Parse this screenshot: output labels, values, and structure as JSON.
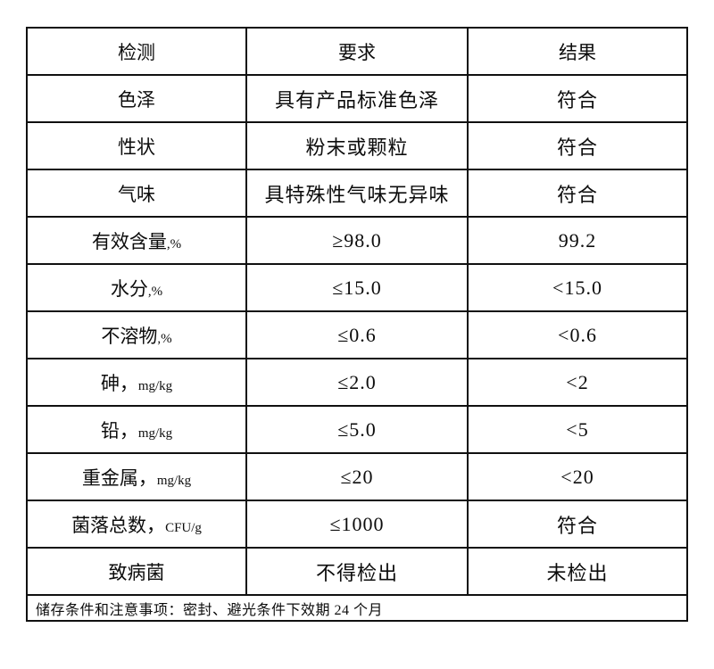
{
  "document": {
    "background_color": "#ffffff",
    "border_color": "#101010",
    "text_color": "#0c0c0c"
  },
  "table": {
    "header": {
      "test": "检测",
      "requirement": "要求",
      "result": "结果"
    },
    "rows": [
      {
        "test_main": "色泽",
        "test_suffix": "",
        "requirement": "具有产品标准色泽",
        "result": "符合"
      },
      {
        "test_main": "性状",
        "test_suffix": "",
        "requirement": "粉末或颗粒",
        "result": "符合"
      },
      {
        "test_main": "气味",
        "test_suffix": "",
        "requirement": "具特殊性气味无异味",
        "result": "符合"
      },
      {
        "test_main": "有效含量",
        "test_suffix": ",%",
        "requirement": "≥98.0",
        "result": "99.2"
      },
      {
        "test_main": "水分",
        "test_suffix": ",%",
        "requirement": "≤15.0",
        "result": "<15.0"
      },
      {
        "test_main": "不溶物",
        "test_suffix": ",%",
        "requirement": "≤0.6",
        "result": "<0.6"
      },
      {
        "test_main": "砷，",
        "test_suffix": "mg/kg",
        "requirement": "≤2.0",
        "result": "<2"
      },
      {
        "test_main": "铅，",
        "test_suffix": "mg/kg",
        "requirement": "≤5.0",
        "result": "<5"
      },
      {
        "test_main": "重金属，",
        "test_suffix": "mg/kg",
        "requirement": "≤20",
        "result": "<20"
      },
      {
        "test_main": "菌落总数，",
        "test_suffix": "CFU/g",
        "requirement": "≤1000",
        "result": "符合"
      },
      {
        "test_main": "致病菌",
        "test_suffix": "",
        "requirement": "不得检出",
        "result": "未检出"
      }
    ],
    "footer": "储存条件和注意事项：密封、避光条件下效期 24 个月"
  }
}
